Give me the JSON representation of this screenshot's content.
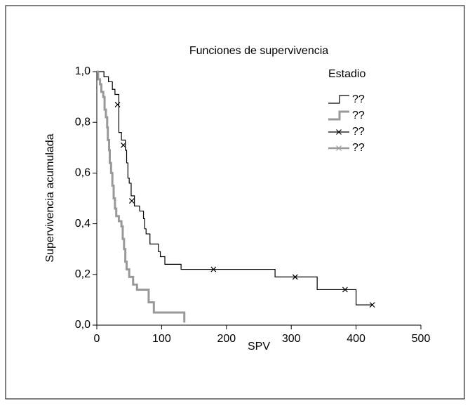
{
  "chart_data": {
    "type": "step",
    "title": "Funciones de supervivencia",
    "xlabel": "SPV",
    "ylabel": "Supervivencia acumulada",
    "legend_title": "Estadio",
    "legend": "upper right",
    "xlim": [
      0,
      500
    ],
    "xticks": [
      0,
      100,
      200,
      300,
      400,
      500
    ],
    "ylim": [
      0,
      1
    ],
    "yticks": [
      {
        "value": 0,
        "label": "0,0"
      },
      {
        "value": 0.2,
        "label": "0,2"
      },
      {
        "value": 0.4,
        "label": "0,4"
      },
      {
        "value": 0.6,
        "label": "0,6"
      },
      {
        "value": 0.8,
        "label": "0,8"
      },
      {
        "value": 1,
        "label": "1,0"
      }
    ],
    "series": [
      {
        "name": "??",
        "color": "#000000",
        "drawstyle": "steps-post",
        "x": [
          0,
          11,
          18,
          24,
          28,
          34,
          38,
          44,
          46,
          48,
          50,
          53,
          58,
          66,
          72,
          74,
          76,
          82,
          95,
          98,
          105,
          130,
          275,
          340,
          400,
          425
        ],
        "values": [
          1.0,
          0.98,
          0.96,
          0.93,
          0.91,
          0.76,
          0.73,
          0.69,
          0.64,
          0.58,
          0.56,
          0.51,
          0.47,
          0.45,
          0.42,
          0.38,
          0.36,
          0.32,
          0.29,
          0.27,
          0.24,
          0.22,
          0.19,
          0.14,
          0.08,
          0.08
        ]
      },
      {
        "name": "??",
        "color": "#999999",
        "drawstyle": "steps-post",
        "x": [
          0,
          2,
          5,
          7,
          10,
          12,
          14,
          16,
          17,
          19,
          20,
          22,
          24,
          26,
          28,
          30,
          34,
          38,
          40,
          42,
          44,
          46,
          50,
          56,
          62,
          80,
          88,
          135
        ],
        "values": [
          1.0,
          0.97,
          0.95,
          0.92,
          0.9,
          0.85,
          0.82,
          0.78,
          0.73,
          0.69,
          0.64,
          0.6,
          0.55,
          0.5,
          0.46,
          0.43,
          0.41,
          0.39,
          0.34,
          0.3,
          0.25,
          0.22,
          0.19,
          0.16,
          0.14,
          0.09,
          0.05,
          0.01
        ]
      },
      {
        "name": "??",
        "color": "#000000",
        "marker": "x",
        "x": [
          32,
          41,
          54,
          180,
          306,
          383,
          425
        ],
        "values": [
          0.87,
          0.71,
          0.49,
          0.22,
          0.19,
          0.14,
          0.08
        ]
      },
      {
        "name": "??",
        "color": "#999999",
        "marker": "x",
        "x": [],
        "values": []
      }
    ]
  }
}
